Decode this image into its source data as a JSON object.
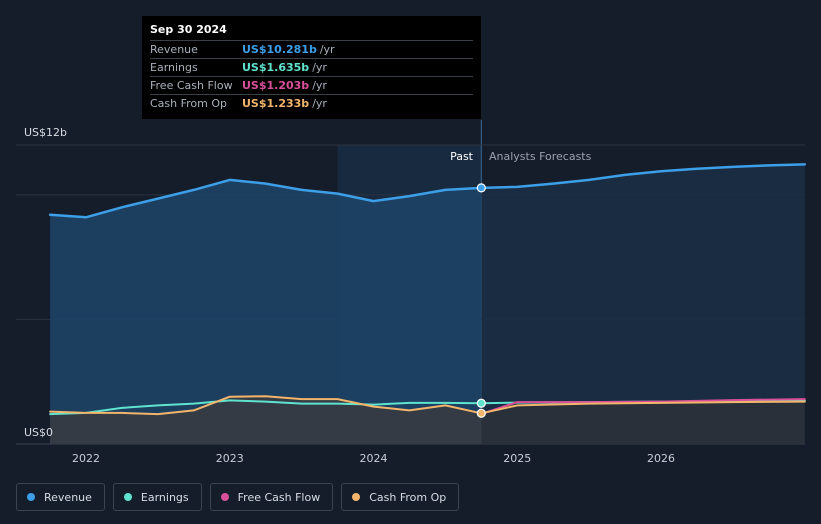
{
  "tooltip": {
    "date": "Sep 30 2024",
    "rows": [
      {
        "label": "Revenue",
        "value": "US$10.281b",
        "unit": "/yr",
        "color": "#3c9fe8"
      },
      {
        "label": "Earnings",
        "value": "US$1.635b",
        "unit": "/yr",
        "color": "#5fe3cf"
      },
      {
        "label": "Free Cash Flow",
        "value": "US$1.203b",
        "unit": "/yr",
        "color": "#d9509a"
      },
      {
        "label": "Cash From Op",
        "value": "US$1.233b",
        "unit": "/yr",
        "color": "#f2b56b"
      }
    ]
  },
  "regions": {
    "past_label": "Past",
    "forecast_label": "Analysts Forecasts"
  },
  "legend": [
    {
      "label": "Revenue",
      "color": "#3c9fe8"
    },
    {
      "label": "Earnings",
      "color": "#5fe3cf"
    },
    {
      "label": "Free Cash Flow",
      "color": "#d9509a"
    },
    {
      "label": "Cash From Op",
      "color": "#f2b56b"
    }
  ],
  "chart_data": {
    "type": "area",
    "y_unit_labels": [
      "US$12b",
      "US$0"
    ],
    "ylim": [
      0,
      12
    ],
    "xlim": [
      2021.7,
      2027.0
    ],
    "x_ticks": [
      2022,
      2023,
      2024,
      2025,
      2026
    ],
    "x_tick_labels": [
      "2022",
      "2023",
      "2024",
      "2025",
      "2026"
    ],
    "past_end_x": 2024.75,
    "highlight_band": [
      2023.75,
      2024.75
    ],
    "series": [
      {
        "name": "Revenue",
        "color": "#3c9fe8",
        "filled": true,
        "x": [
          2021.75,
          2022.0,
          2022.25,
          2022.5,
          2022.75,
          2023.0,
          2023.25,
          2023.5,
          2023.75,
          2024.0,
          2024.25,
          2024.5,
          2024.75,
          2025.0,
          2025.25,
          2025.5,
          2025.75,
          2026.0,
          2026.25,
          2026.5,
          2026.75,
          2027.0
        ],
        "y": [
          9.2,
          9.1,
          9.5,
          9.85,
          10.2,
          10.6,
          10.45,
          10.2,
          10.05,
          9.75,
          9.95,
          10.2,
          10.28,
          10.32,
          10.45,
          10.6,
          10.8,
          10.95,
          11.05,
          11.12,
          11.18,
          11.22
        ]
      },
      {
        "name": "Earnings",
        "color": "#5fe3cf",
        "filled": false,
        "x": [
          2021.75,
          2022.0,
          2022.25,
          2022.5,
          2022.75,
          2023.0,
          2023.25,
          2023.5,
          2023.75,
          2024.0,
          2024.25,
          2024.5,
          2024.75,
          2025.0,
          2025.5,
          2026.0,
          2026.5,
          2027.0
        ],
        "y": [
          1.2,
          1.25,
          1.45,
          1.55,
          1.62,
          1.75,
          1.7,
          1.62,
          1.62,
          1.58,
          1.65,
          1.65,
          1.635,
          1.66,
          1.68,
          1.7,
          1.72,
          1.74
        ]
      },
      {
        "name": "Free Cash Flow",
        "color": "#d9509a",
        "filled": false,
        "x": [
          2024.75,
          2025.0,
          2025.5,
          2026.0,
          2026.5,
          2027.0
        ],
        "y": [
          1.203,
          1.68,
          1.68,
          1.7,
          1.76,
          1.8
        ]
      },
      {
        "name": "Cash From Op",
        "color": "#f2b56b",
        "filled": true,
        "x": [
          2021.75,
          2022.0,
          2022.25,
          2022.5,
          2022.75,
          2023.0,
          2023.25,
          2023.5,
          2023.75,
          2024.0,
          2024.25,
          2024.5,
          2024.75,
          2025.0,
          2025.5,
          2026.0,
          2026.5,
          2027.0
        ],
        "y": [
          1.3,
          1.25,
          1.25,
          1.2,
          1.35,
          1.9,
          1.92,
          1.8,
          1.8,
          1.5,
          1.35,
          1.55,
          1.233,
          1.55,
          1.62,
          1.65,
          1.68,
          1.7
        ]
      }
    ]
  }
}
